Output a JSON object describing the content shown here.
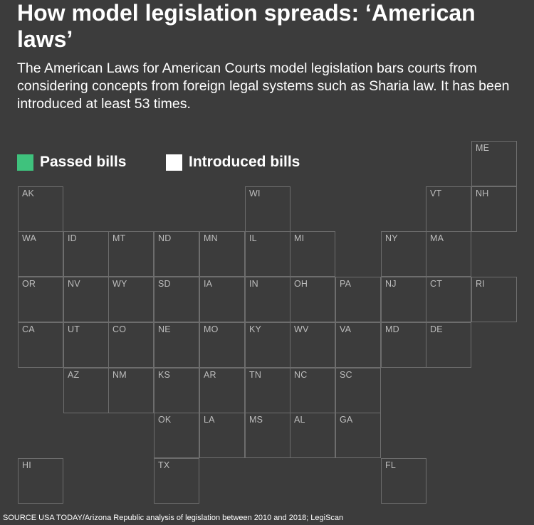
{
  "title": "How model legislation spreads: ‘American laws’",
  "subtitle": "The American Laws for American Courts model legislation bars courts from considering concepts from foreign legal systems such as Sharia law. It has been introduced at least 53 times.",
  "legend": {
    "passed": {
      "label": "Passed bills",
      "color": "#3fc27d"
    },
    "introduced": {
      "label": "Introduced bills",
      "color": "#ffffff"
    }
  },
  "colors": {
    "background": "#3c3c3c",
    "cell_border": "#6d6d6d",
    "cell_label": "#bdbdbd"
  },
  "states": [
    {
      "abbr": "ME",
      "row": 0,
      "col": 10
    },
    {
      "abbr": "AK",
      "row": 1,
      "col": 0
    },
    {
      "abbr": "WI",
      "row": 1,
      "col": 5
    },
    {
      "abbr": "VT",
      "row": 1,
      "col": 9
    },
    {
      "abbr": "NH",
      "row": 1,
      "col": 10
    },
    {
      "abbr": "WA",
      "row": 2,
      "col": 0
    },
    {
      "abbr": "ID",
      "row": 2,
      "col": 1
    },
    {
      "abbr": "MT",
      "row": 2,
      "col": 2
    },
    {
      "abbr": "ND",
      "row": 2,
      "col": 3
    },
    {
      "abbr": "MN",
      "row": 2,
      "col": 4
    },
    {
      "abbr": "IL",
      "row": 2,
      "col": 5
    },
    {
      "abbr": "MI",
      "row": 2,
      "col": 6
    },
    {
      "abbr": "NY",
      "row": 2,
      "col": 8
    },
    {
      "abbr": "MA",
      "row": 2,
      "col": 9
    },
    {
      "abbr": "OR",
      "row": 3,
      "col": 0
    },
    {
      "abbr": "NV",
      "row": 3,
      "col": 1
    },
    {
      "abbr": "WY",
      "row": 3,
      "col": 2
    },
    {
      "abbr": "SD",
      "row": 3,
      "col": 3
    },
    {
      "abbr": "IA",
      "row": 3,
      "col": 4
    },
    {
      "abbr": "IN",
      "row": 3,
      "col": 5
    },
    {
      "abbr": "OH",
      "row": 3,
      "col": 6
    },
    {
      "abbr": "PA",
      "row": 3,
      "col": 7
    },
    {
      "abbr": "NJ",
      "row": 3,
      "col": 8
    },
    {
      "abbr": "CT",
      "row": 3,
      "col": 9
    },
    {
      "abbr": "RI",
      "row": 3,
      "col": 10
    },
    {
      "abbr": "CA",
      "row": 4,
      "col": 0
    },
    {
      "abbr": "UT",
      "row": 4,
      "col": 1
    },
    {
      "abbr": "CO",
      "row": 4,
      "col": 2
    },
    {
      "abbr": "NE",
      "row": 4,
      "col": 3
    },
    {
      "abbr": "MO",
      "row": 4,
      "col": 4
    },
    {
      "abbr": "KY",
      "row": 4,
      "col": 5
    },
    {
      "abbr": "WV",
      "row": 4,
      "col": 6
    },
    {
      "abbr": "VA",
      "row": 4,
      "col": 7
    },
    {
      "abbr": "MD",
      "row": 4,
      "col": 8
    },
    {
      "abbr": "DE",
      "row": 4,
      "col": 9
    },
    {
      "abbr": "AZ",
      "row": 5,
      "col": 1
    },
    {
      "abbr": "NM",
      "row": 5,
      "col": 2
    },
    {
      "abbr": "KS",
      "row": 5,
      "col": 3
    },
    {
      "abbr": "AR",
      "row": 5,
      "col": 4
    },
    {
      "abbr": "TN",
      "row": 5,
      "col": 5
    },
    {
      "abbr": "NC",
      "row": 5,
      "col": 6
    },
    {
      "abbr": "SC",
      "row": 5,
      "col": 7
    },
    {
      "abbr": "OK",
      "row": 6,
      "col": 3
    },
    {
      "abbr": "LA",
      "row": 6,
      "col": 4
    },
    {
      "abbr": "MS",
      "row": 6,
      "col": 5
    },
    {
      "abbr": "AL",
      "row": 6,
      "col": 6
    },
    {
      "abbr": "GA",
      "row": 6,
      "col": 7
    },
    {
      "abbr": "HI",
      "row": 7,
      "col": 0
    },
    {
      "abbr": "TX",
      "row": 7,
      "col": 3
    },
    {
      "abbr": "FL",
      "row": 7,
      "col": 8
    }
  ],
  "source": "SOURCE USA TODAY/Arizona Republic analysis of legislation between 2010 and 2018; LegiScan"
}
